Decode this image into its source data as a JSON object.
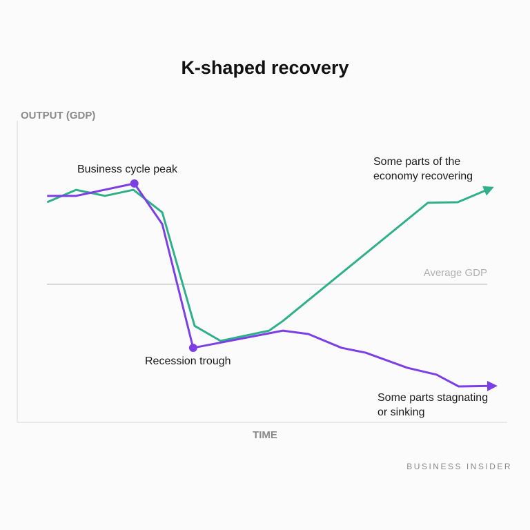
{
  "chart_data": {
    "type": "line",
    "title": "K-shaped recovery",
    "y_label": "OUTPUT (GDP)",
    "x_label": "TIME",
    "source": "BUSINESS INSIDER",
    "xlim": [
      0,
      100
    ],
    "ylim": [
      0,
      100
    ],
    "reference_line": {
      "label": "Average GDP",
      "value": 45.8,
      "color": "#c8c8c8"
    },
    "series": [
      {
        "color": "#2fb08a",
        "x": [
          6.1,
          12.0,
          17.9,
          23.7,
          29.6,
          36.2,
          41.5,
          51.4,
          54.2,
          83.8,
          89.9,
          96.9
        ],
        "values": [
          73.0,
          77.1,
          75.1,
          77.1,
          69.6,
          32.0,
          27.0,
          30.4,
          33.6,
          72.8,
          73.0,
          77.8
        ]
      },
      {
        "color": "#7b3fe4",
        "x": [
          6.1,
          12.0,
          23.9,
          29.6,
          35.9,
          54.2,
          59.4,
          66.2,
          71.1,
          79.6,
          85.6,
          90.1,
          97.6
        ],
        "values": [
          75.1,
          75.1,
          79.2,
          65.7,
          24.7,
          30.4,
          29.3,
          24.7,
          23.1,
          18.1,
          15.8,
          11.9,
          12.1
        ]
      }
    ],
    "annotations": [
      [
        "Business cycle peak"
      ],
      [
        "Recession trough"
      ],
      [
        "Some parts of the",
        "economy recovering"
      ],
      [
        "Some parts stagnating",
        "or sinking"
      ]
    ]
  }
}
